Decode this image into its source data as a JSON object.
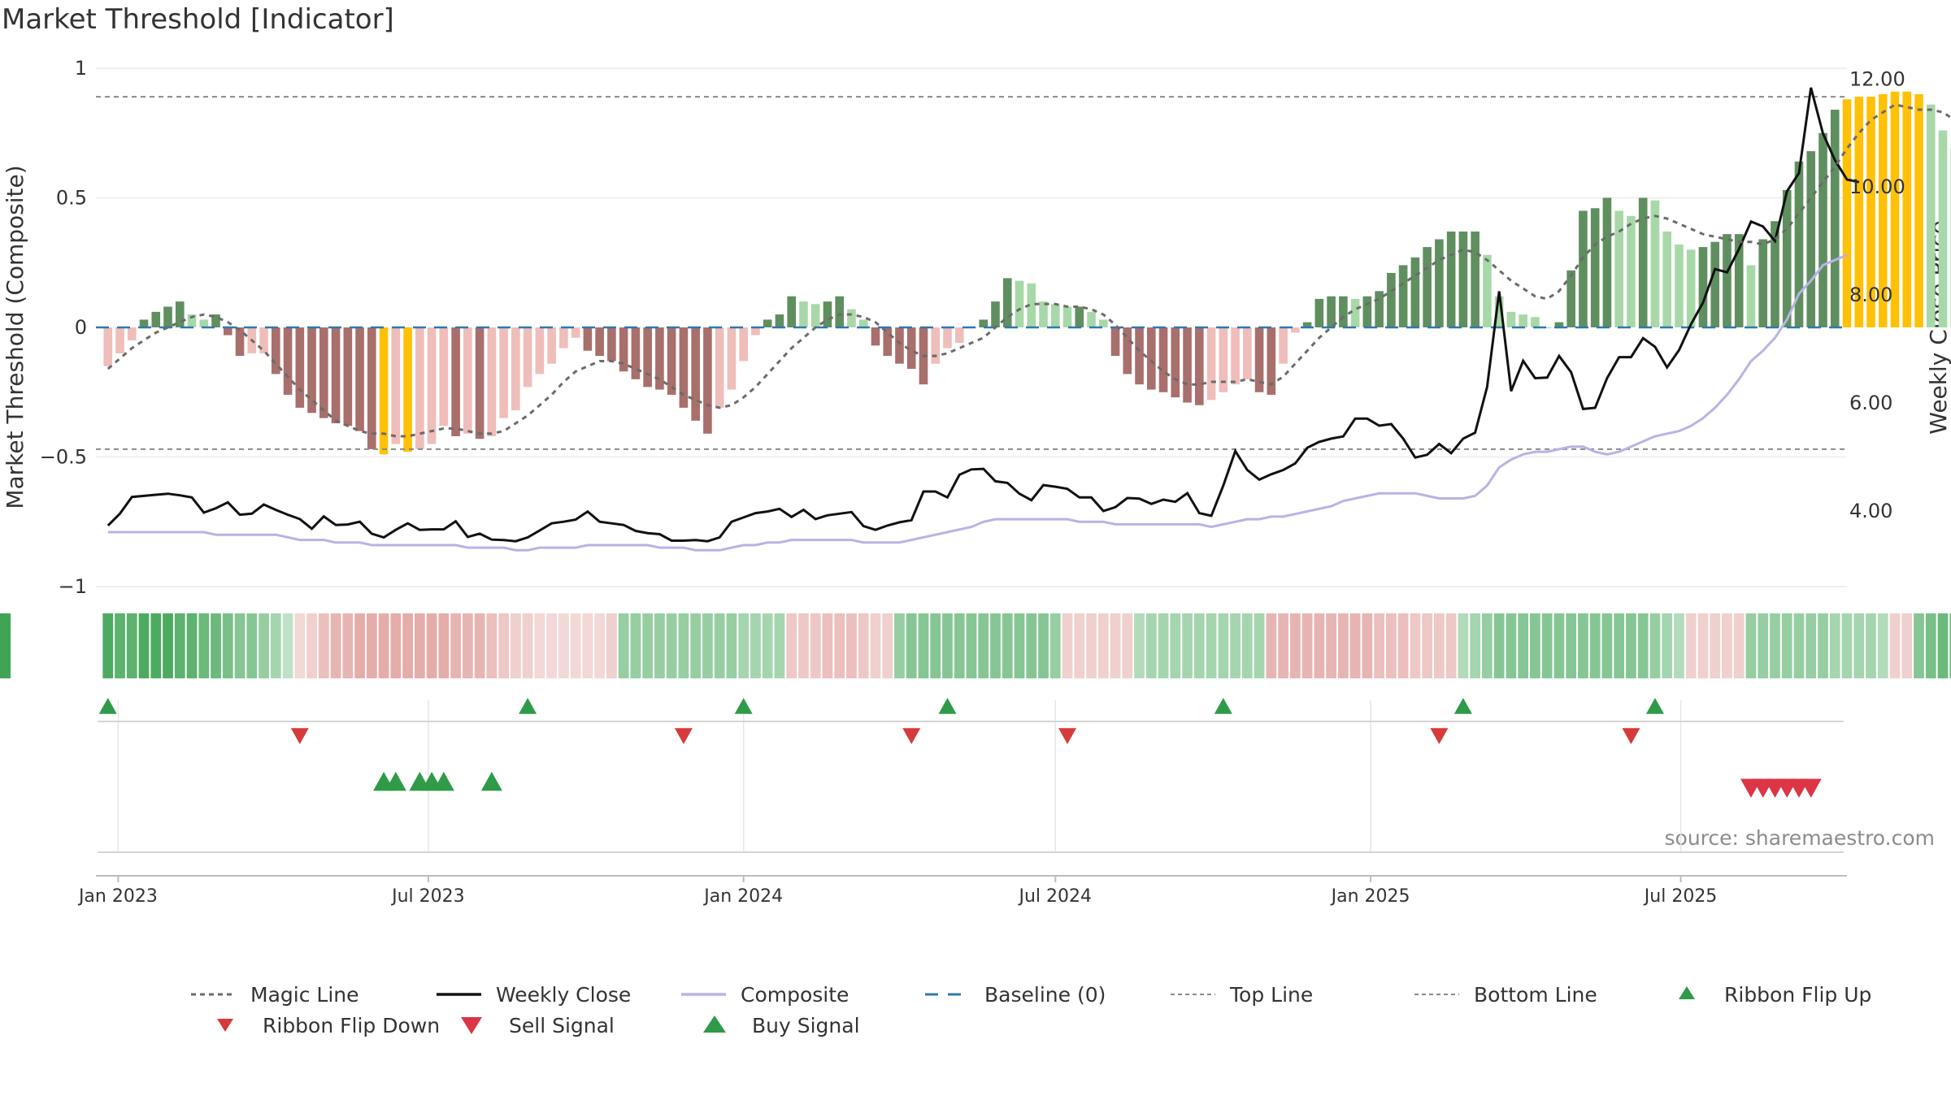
{
  "title": "Market Threshold [Indicator]",
  "source": "source: sharemaestro.com",
  "colors": {
    "magic_line": "#6b6b6b",
    "weekly_close": "#111111",
    "composite": "#b9b2e6",
    "baseline": "#2e78b0",
    "threshold_line": "#8a8a8a",
    "buy": "#2f9a47",
    "sell": "#d63a3a",
    "bar_pos_strong": "#5f8f5f",
    "bar_pos_weak": "#a8d8a8",
    "bar_neg_strong": "#a86f6c",
    "bar_neg_weak": "#efbdba",
    "bar_extreme": "#ffc107",
    "ribbon_green": "#3fa555",
    "ribbon_red": "#d88a86"
  },
  "chart_data": {
    "type": "bar",
    "x_type": "weekly dates",
    "xlim": [
      "2022-12-19",
      "2025-10-06"
    ],
    "x_ticks": [
      "Jan 2023",
      "Jul 2023",
      "Jan 2024",
      "Jul 2024",
      "Jan 2025",
      "Jul 2025"
    ],
    "ylabel_left": "Market Threshold (Composite)",
    "ylim_left": [
      -1,
      1
    ],
    "y_ticks_left": [
      "1",
      "0.5",
      "0",
      "−0.5",
      "−1"
    ],
    "ylabel_right": "Weekly Close Price",
    "ylim_right": [
      2.6,
      12.2
    ],
    "y_ticks_right": [
      "12.00",
      "10.00",
      "8.00",
      "6.00",
      "4.00"
    ],
    "top_line": 0.89,
    "bottom_line": -0.47,
    "baseline": 0,
    "composite_bars": [
      -0.15,
      -0.1,
      -0.05,
      0.03,
      0.06,
      0.08,
      0.1,
      0.05,
      0.03,
      0.05,
      -0.03,
      -0.11,
      -0.1,
      -0.1,
      -0.18,
      -0.26,
      -0.31,
      -0.33,
      -0.35,
      -0.37,
      -0.38,
      -0.4,
      -0.47,
      -0.49,
      -0.45,
      -0.48,
      -0.47,
      -0.45,
      -0.38,
      -0.42,
      -0.41,
      -0.43,
      -0.42,
      -0.35,
      -0.32,
      -0.23,
      -0.18,
      -0.14,
      -0.08,
      -0.04,
      -0.09,
      -0.11,
      -0.13,
      -0.17,
      -0.2,
      -0.23,
      -0.24,
      -0.26,
      -0.31,
      -0.36,
      -0.41,
      -0.31,
      -0.24,
      -0.13,
      -0.03,
      0.03,
      0.05,
      0.12,
      0.1,
      0.09,
      0.1,
      0.12,
      0.07,
      0.03,
      -0.07,
      -0.11,
      -0.14,
      -0.16,
      -0.22,
      -0.14,
      -0.08,
      -0.06,
      0.0,
      0.03,
      0.1,
      0.19,
      0.18,
      0.17,
      0.1,
      0.09,
      0.08,
      0.08,
      0.06,
      0.03,
      -0.11,
      -0.18,
      -0.22,
      -0.24,
      -0.25,
      -0.27,
      -0.29,
      -0.3,
      -0.28,
      -0.25,
      -0.22,
      -0.2,
      -0.25,
      -0.26,
      -0.14,
      -0.02,
      0.02,
      0.11,
      0.12,
      0.12,
      0.11,
      0.12,
      0.14,
      0.21,
      0.24,
      0.27,
      0.31,
      0.34,
      0.37,
      0.37,
      0.37,
      0.28,
      0.12,
      0.06,
      0.05,
      0.04,
      0.0,
      0.02,
      0.22,
      0.45,
      0.46,
      0.5,
      0.45,
      0.43,
      0.5,
      0.49,
      0.37,
      0.32,
      0.3,
      0.31,
      0.33,
      0.36,
      0.36,
      0.24,
      0.34,
      0.41,
      0.53,
      0.64,
      0.68,
      0.75,
      0.84,
      0.88,
      0.89,
      0.89,
      0.9,
      0.91,
      0.91,
      0.9,
      0.86,
      0.76,
      0.69
    ],
    "series": [
      {
        "name": "Magic Line",
        "values": [
          -0.16,
          -0.12,
          -0.08,
          -0.05,
          -0.02,
          0.0,
          0.02,
          0.04,
          0.05,
          0.04,
          0.02,
          -0.01,
          -0.05,
          -0.09,
          -0.14,
          -0.19,
          -0.24,
          -0.28,
          -0.32,
          -0.36,
          -0.38,
          -0.4,
          -0.41,
          -0.41,
          -0.42,
          -0.42,
          -0.41,
          -0.4,
          -0.39,
          -0.39,
          -0.4,
          -0.41,
          -0.41,
          -0.4,
          -0.37,
          -0.34,
          -0.3,
          -0.26,
          -0.21,
          -0.17,
          -0.15,
          -0.13,
          -0.13,
          -0.14,
          -0.16,
          -0.18,
          -0.2,
          -0.23,
          -0.26,
          -0.28,
          -0.3,
          -0.31,
          -0.3,
          -0.27,
          -0.23,
          -0.18,
          -0.13,
          -0.08,
          -0.04,
          0.0,
          0.03,
          0.05,
          0.05,
          0.04,
          0.02,
          -0.02,
          -0.06,
          -0.09,
          -0.11,
          -0.11,
          -0.1,
          -0.08,
          -0.06,
          -0.04,
          0.0,
          0.04,
          0.07,
          0.09,
          0.09,
          0.09,
          0.08,
          0.08,
          0.07,
          0.05,
          0.01,
          -0.04,
          -0.09,
          -0.13,
          -0.17,
          -0.2,
          -0.22,
          -0.22,
          -0.21,
          -0.21,
          -0.21,
          -0.2,
          -0.21,
          -0.22,
          -0.19,
          -0.14,
          -0.09,
          -0.04,
          0.0,
          0.04,
          0.07,
          0.09,
          0.11,
          0.14,
          0.17,
          0.2,
          0.23,
          0.26,
          0.28,
          0.3,
          0.29,
          0.26,
          0.22,
          0.18,
          0.15,
          0.12,
          0.11,
          0.14,
          0.2,
          0.27,
          0.32,
          0.35,
          0.37,
          0.4,
          0.42,
          0.43,
          0.42,
          0.4,
          0.38,
          0.36,
          0.35,
          0.34,
          0.33,
          0.33,
          0.32,
          0.34,
          0.38,
          0.44,
          0.5,
          0.56,
          0.62,
          0.69,
          0.75,
          0.8,
          0.83,
          0.86,
          0.85,
          0.84,
          0.84,
          0.83,
          0.8
        ]
      },
      {
        "name": "Weekly Close",
        "values": [
          3.73,
          3.95,
          4.26,
          4.28,
          4.3,
          4.32,
          4.29,
          4.25,
          3.97,
          4.05,
          4.16,
          3.93,
          3.95,
          4.12,
          4.02,
          3.93,
          3.85,
          3.67,
          3.9,
          3.74,
          3.75,
          3.8,
          3.58,
          3.51,
          3.65,
          3.77,
          3.65,
          3.66,
          3.66,
          3.81,
          3.52,
          3.58,
          3.47,
          3.46,
          3.44,
          3.51,
          3.64,
          3.77,
          3.8,
          3.84,
          3.99,
          3.8,
          3.77,
          3.74,
          3.63,
          3.59,
          3.57,
          3.45,
          3.45,
          3.46,
          3.44,
          3.51,
          3.8,
          3.88,
          3.96,
          3.99,
          4.04,
          3.89,
          4.02,
          3.85,
          3.92,
          3.95,
          3.98,
          3.72,
          3.65,
          3.73,
          3.79,
          3.83,
          4.36,
          4.36,
          4.25,
          4.67,
          4.77,
          4.78,
          4.55,
          4.52,
          4.32,
          4.2,
          4.48,
          4.45,
          4.41,
          4.25,
          4.25,
          4.0,
          4.07,
          4.24,
          4.23,
          4.13,
          4.21,
          4.17,
          4.33,
          3.96,
          3.91,
          4.47,
          5.11,
          4.76,
          4.58,
          4.68,
          4.76,
          4.88,
          5.17,
          5.28,
          5.34,
          5.38,
          5.71,
          5.71,
          5.58,
          5.61,
          5.34,
          4.99,
          5.04,
          5.24,
          5.07,
          5.34,
          5.45,
          6.3,
          8.07,
          6.22,
          6.78,
          6.46,
          6.47,
          6.87,
          6.57,
          5.89,
          5.91,
          6.46,
          6.85,
          6.85,
          7.2,
          7.04,
          6.66,
          6.98,
          7.46,
          7.86,
          8.48,
          8.42,
          8.85,
          9.36,
          9.27,
          9.0,
          9.92,
          10.26,
          11.84,
          10.99,
          10.5,
          10.14,
          10.09
        ]
      },
      {
        "name": "Composite",
        "values": [
          -0.79,
          -0.79,
          -0.79,
          -0.79,
          -0.79,
          -0.79,
          -0.79,
          -0.79,
          -0.79,
          -0.8,
          -0.8,
          -0.8,
          -0.8,
          -0.8,
          -0.8,
          -0.81,
          -0.82,
          -0.82,
          -0.82,
          -0.83,
          -0.83,
          -0.83,
          -0.84,
          -0.84,
          -0.84,
          -0.84,
          -0.84,
          -0.84,
          -0.84,
          -0.84,
          -0.85,
          -0.85,
          -0.85,
          -0.85,
          -0.86,
          -0.86,
          -0.85,
          -0.85,
          -0.85,
          -0.85,
          -0.84,
          -0.84,
          -0.84,
          -0.84,
          -0.84,
          -0.84,
          -0.85,
          -0.85,
          -0.85,
          -0.86,
          -0.86,
          -0.86,
          -0.85,
          -0.84,
          -0.84,
          -0.83,
          -0.83,
          -0.82,
          -0.82,
          -0.82,
          -0.82,
          -0.82,
          -0.82,
          -0.83,
          -0.83,
          -0.83,
          -0.83,
          -0.82,
          -0.81,
          -0.8,
          -0.79,
          -0.78,
          -0.77,
          -0.75,
          -0.74,
          -0.74,
          -0.74,
          -0.74,
          -0.74,
          -0.74,
          -0.74,
          -0.75,
          -0.75,
          -0.75,
          -0.76,
          -0.76,
          -0.76,
          -0.76,
          -0.76,
          -0.76,
          -0.76,
          -0.76,
          -0.77,
          -0.76,
          -0.75,
          -0.74,
          -0.74,
          -0.73,
          -0.73,
          -0.72,
          -0.71,
          -0.7,
          -0.69,
          -0.67,
          -0.66,
          -0.65,
          -0.64,
          -0.64,
          -0.64,
          -0.64,
          -0.65,
          -0.66,
          -0.66,
          -0.66,
          -0.65,
          -0.61,
          -0.54,
          -0.51,
          -0.49,
          -0.48,
          -0.48,
          -0.47,
          -0.46,
          -0.46,
          -0.48,
          -0.49,
          -0.48,
          -0.46,
          -0.44,
          -0.42,
          -0.41,
          -0.4,
          -0.38,
          -0.35,
          -0.31,
          -0.26,
          -0.2,
          -0.13,
          -0.09,
          -0.04,
          0.03,
          0.13,
          0.18,
          0.24,
          0.26,
          0.28
        ]
      },
      {
        "name": "Baseline (0)"
      },
      {
        "name": "Top Line"
      },
      {
        "name": "Bottom Line"
      }
    ],
    "ribbon_tones": [
      0.9,
      0.8,
      0.8,
      0.9,
      0.9,
      0.9,
      0.8,
      0.8,
      0.7,
      0.7,
      0.6,
      0.5,
      0.5,
      0.4,
      0.3,
      0.1,
      -0.1,
      -0.2,
      -0.4,
      -0.5,
      -0.5,
      -0.6,
      -0.6,
      -0.6,
      -0.6,
      -0.6,
      -0.6,
      -0.6,
      -0.6,
      -0.5,
      -0.5,
      -0.5,
      -0.4,
      -0.3,
      -0.2,
      -0.2,
      -0.1,
      -0.1,
      -0.1,
      -0.1,
      -0.1,
      -0.1,
      -0.2,
      0.4,
      0.4,
      0.4,
      0.4,
      0.4,
      0.4,
      0.4,
      0.4,
      0.4,
      0.4,
      0.3,
      0.3,
      0.3,
      0.3,
      -0.3,
      -0.3,
      -0.3,
      -0.4,
      -0.4,
      -0.4,
      -0.3,
      -0.2,
      -0.2,
      0.4,
      0.5,
      0.5,
      0.5,
      0.5,
      0.5,
      0.5,
      0.5,
      0.5,
      0.5,
      0.5,
      0.5,
      0.5,
      0.4,
      -0.2,
      -0.2,
      -0.2,
      -0.2,
      -0.2,
      -0.2,
      0.2,
      0.3,
      0.3,
      0.3,
      0.3,
      0.3,
      0.3,
      0.3,
      0.3,
      0.3,
      0.3,
      -0.5,
      -0.5,
      -0.5,
      -0.5,
      -0.5,
      -0.5,
      -0.5,
      -0.5,
      -0.5,
      -0.4,
      -0.4,
      -0.4,
      -0.3,
      -0.3,
      -0.3,
      -0.3,
      0.2,
      0.3,
      0.4,
      0.5,
      0.5,
      0.5,
      0.5,
      0.5,
      0.5,
      0.5,
      0.5,
      0.5,
      0.5,
      0.5,
      0.5,
      0.5,
      0.4,
      0.3,
      0.2,
      -0.2,
      -0.2,
      -0.2,
      -0.2,
      -0.2,
      0.4,
      0.4,
      0.4,
      0.4,
      0.4,
      0.4,
      0.4,
      0.3,
      0.3,
      0.3,
      0.3,
      0.2,
      -0.2,
      -0.2,
      0.5,
      0.6,
      0.7,
      0.7,
      0.8,
      0.8,
      0.8,
      0.8,
      0.8,
      0.8,
      0.7,
      0.7,
      0.6,
      0.5,
      0.4,
      0.3
    ],
    "ribbon_flip_up": [
      "2022-12-26",
      "2023-08-28",
      "2024-01-01",
      "2024-04-29",
      "2024-10-07",
      "2025-02-24",
      "2025-06-16"
    ],
    "ribbon_flip_down": [
      "2023-04-17",
      "2023-11-27",
      "2024-04-08",
      "2024-07-08",
      "2025-02-10",
      "2025-06-02"
    ],
    "buy_signal": [
      "2023-06-05",
      "2023-06-12",
      "2023-06-26",
      "2023-07-03",
      "2023-07-10",
      "2023-08-07"
    ],
    "sell_signal": [
      "2025-08-11",
      "2025-08-18",
      "2025-08-25",
      "2025-09-01",
      "2025-09-08",
      "2025-09-15"
    ],
    "legend": [
      "Magic Line",
      "Weekly Close",
      "Composite",
      "Baseline (0)",
      "Top Line",
      "Bottom Line",
      "Ribbon Flip Up",
      "Ribbon Flip Down",
      "Sell Signal",
      "Buy Signal"
    ],
    "legend_position": "bottom"
  }
}
